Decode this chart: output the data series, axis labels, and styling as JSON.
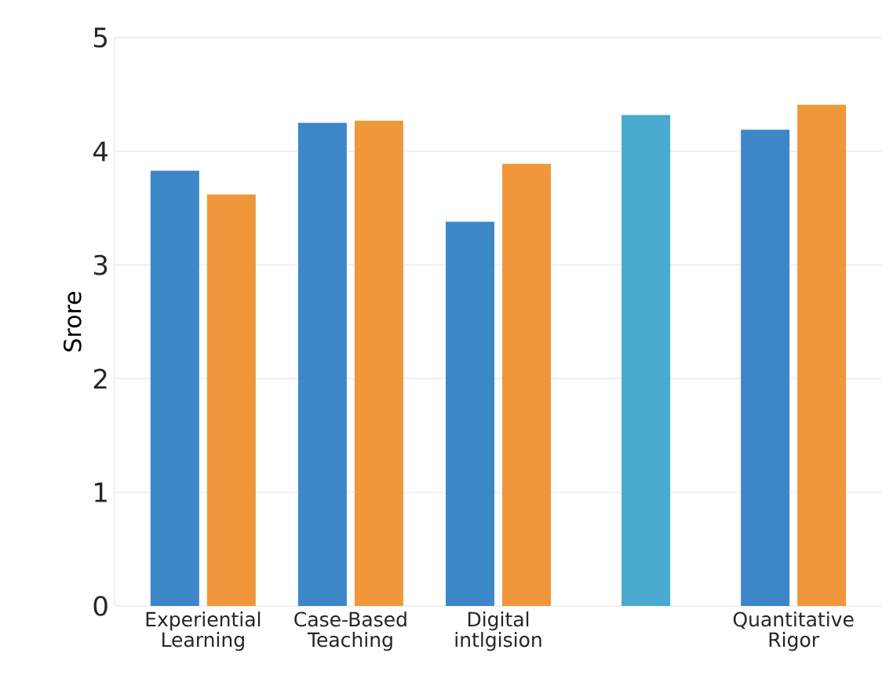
{
  "chart_data": {
    "type": "bar",
    "ylabel": "Srore",
    "categories": [
      "Experiential Learning",
      "Case-Based Teaching",
      "Digital intlgision",
      null,
      "Quantitative Rigor"
    ],
    "series": [
      {
        "color": "#3d87c8",
        "values": [
          3.83,
          4.25,
          3.38,
          null,
          4.19
        ]
      },
      {
        "color": "#ef973a",
        "values": [
          3.62,
          4.27,
          3.89,
          null,
          4.41
        ]
      },
      {
        "color": "#4aaad0",
        "values": [
          null,
          null,
          null,
          4.32,
          null
        ]
      }
    ],
    "ylim": [
      0,
      5
    ],
    "yticks": [
      0,
      1,
      2,
      3,
      4,
      5
    ],
    "grid": "y"
  }
}
